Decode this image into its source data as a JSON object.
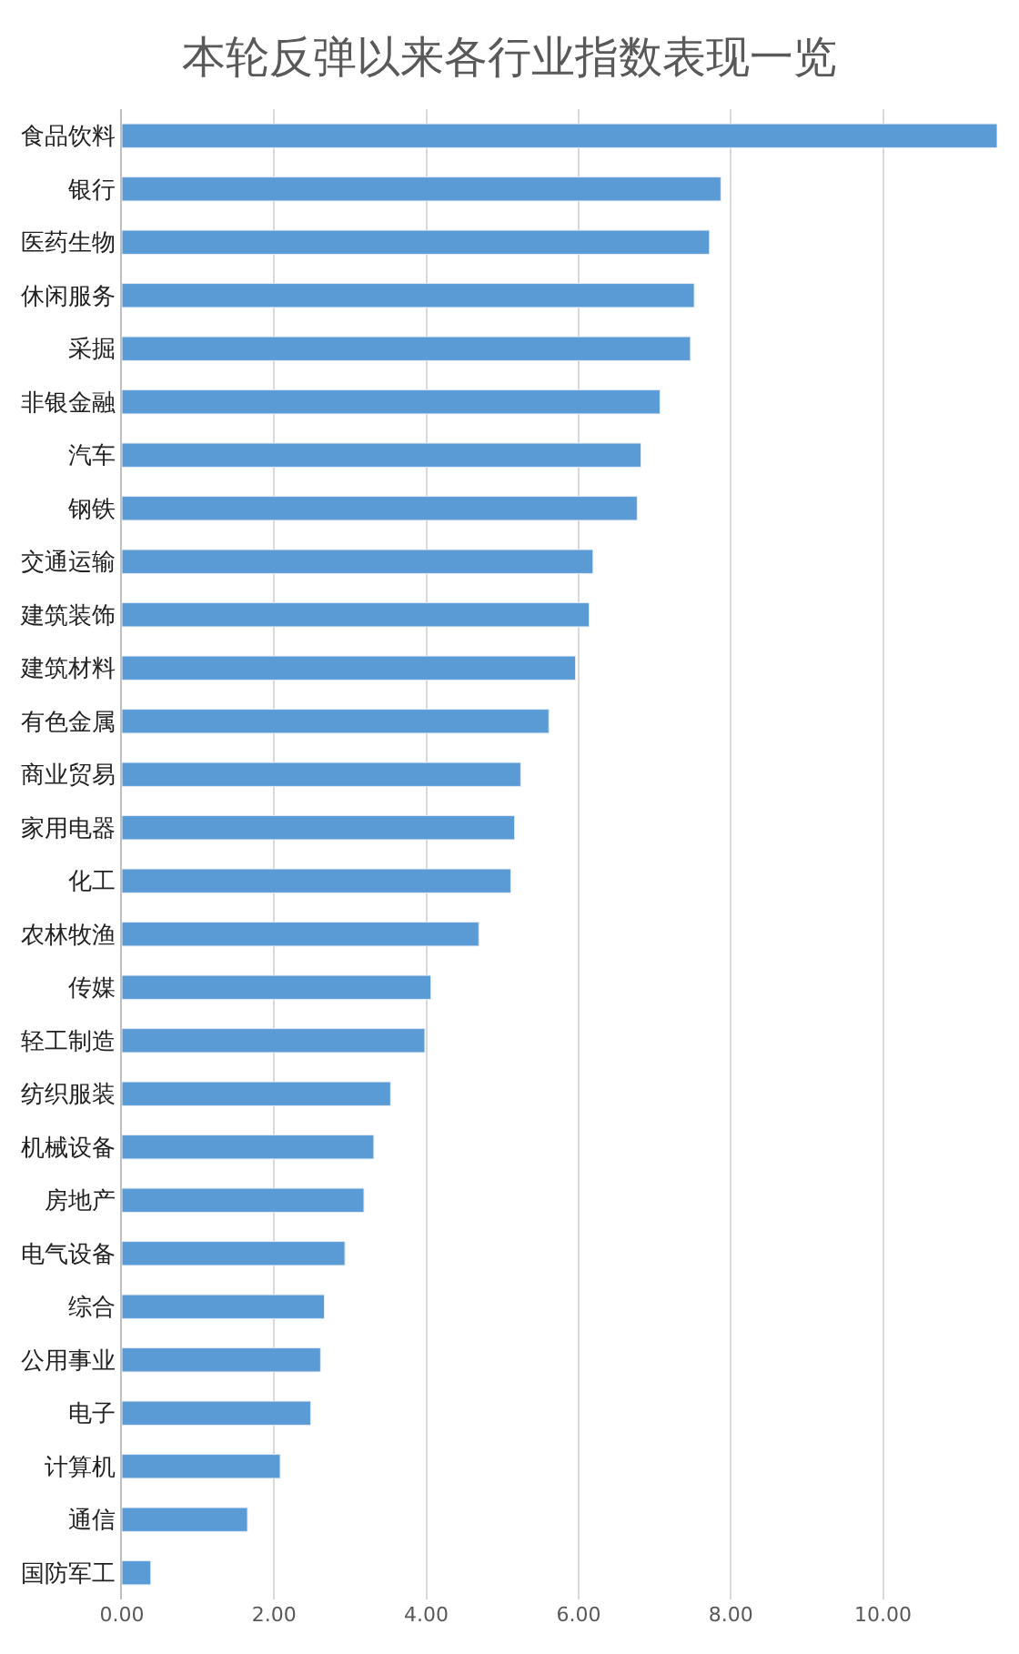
{
  "chart_data": {
    "type": "bar",
    "orientation": "horizontal",
    "title": "本轮反弹以来各行业指数表现一览",
    "categories": [
      "食品饮料",
      "银行",
      "医药生物",
      "休闲服务",
      "采掘",
      "非银金融",
      "汽车",
      "钢铁",
      "交通运输",
      "建筑装饰",
      "建筑材料",
      "有色金属",
      "商业贸易",
      "家用电器",
      "化工",
      "农林牧渔",
      "传媒",
      "轻工制造",
      "纺织服装",
      "机械设备",
      "房地产",
      "电气设备",
      "综合",
      "公用事业",
      "电子",
      "计算机",
      "通信",
      "国防军工"
    ],
    "values": [
      11.5,
      7.87,
      7.72,
      7.52,
      7.47,
      7.07,
      6.82,
      6.77,
      6.19,
      6.14,
      5.96,
      5.61,
      5.24,
      5.16,
      5.11,
      4.69,
      4.06,
      3.98,
      3.53,
      3.31,
      3.18,
      2.93,
      2.66,
      2.61,
      2.48,
      2.08,
      1.65,
      0.38
    ],
    "color": "#5b9bd5",
    "xlim": [
      0,
      11.5
    ],
    "xticks": [
      {
        "value": 0,
        "label": "0.00"
      },
      {
        "value": 2,
        "label": "2.00"
      },
      {
        "value": 4,
        "label": "4.00"
      },
      {
        "value": 6,
        "label": "6.00"
      },
      {
        "value": 8,
        "label": "8.00"
      },
      {
        "value": 10,
        "label": "10.00"
      }
    ],
    "grid": "x"
  }
}
